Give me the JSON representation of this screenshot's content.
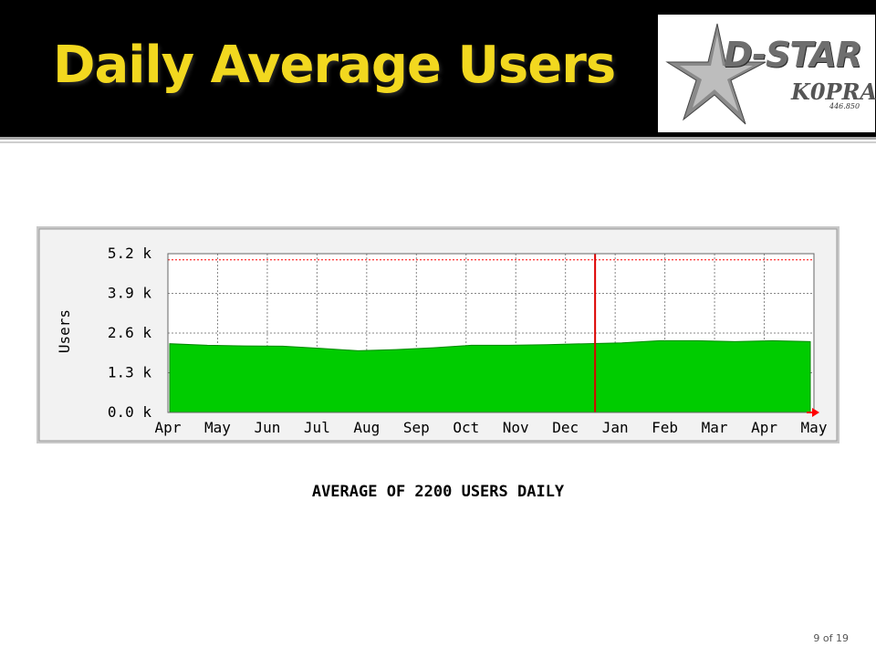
{
  "slide": {
    "title": "Daily Average Users",
    "caption": "AVERAGE OF 2200 USERS DAILY",
    "page_number": "9 of 19"
  },
  "logo": {
    "text": "D-STAR",
    "callsign": "K0PRA",
    "frequency": "446.850"
  },
  "colors": {
    "title": "#f2d81f",
    "header_bg": "#000000",
    "area_fill": "#00cc00",
    "max_line": "#ff0000",
    "marker_line": "#dd0000"
  },
  "chart_data": {
    "type": "area",
    "ylabel": "Users",
    "xlabel": "",
    "title": "",
    "ylim": [
      0,
      5200
    ],
    "yticks": [
      0,
      1300,
      2600,
      3900,
      5200
    ],
    "ytick_labels": [
      "0.0 k",
      "1.3 k",
      "2.6 k",
      "3.9 k",
      "5.2 k"
    ],
    "x_labels": [
      "Apr",
      "May",
      "Jun",
      "Jul",
      "Aug",
      "Sep",
      "Oct",
      "Nov",
      "Dec",
      "Jan",
      "Feb",
      "Mar",
      "Apr",
      "May"
    ],
    "grid": true,
    "max_line_value": 5000,
    "marker_position": "Jan",
    "series": [
      {
        "values": [
          2250,
          2200,
          2180,
          2170,
          2100,
          2020,
          2060,
          2120,
          2200,
          2200,
          2220,
          2250,
          2280,
          2350,
          2350,
          2320,
          2350,
          2320
        ]
      }
    ]
  }
}
